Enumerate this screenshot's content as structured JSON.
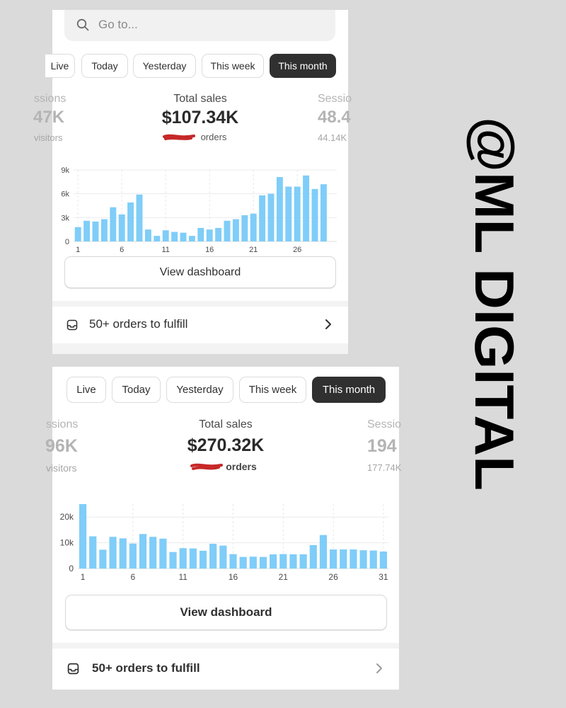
{
  "top_panel": {
    "search_placeholder": "Go to...",
    "tabs": [
      {
        "label": "Live",
        "active": false
      },
      {
        "label": "Today",
        "active": false
      },
      {
        "label": "Yesterday",
        "active": false
      },
      {
        "label": "This week",
        "active": false
      },
      {
        "label": "This month",
        "active": true
      }
    ],
    "left_stat": {
      "title": "ssions",
      "value": "47K",
      "sub": "visitors"
    },
    "main_stat": {
      "title": "Total sales",
      "value": "$107.34K",
      "sub": "orders"
    },
    "right_stat": {
      "title": "Sessio",
      "value": "48.4",
      "sub": "44.14K"
    },
    "button_label": "View dashboard",
    "fulfill_label": "50+ orders to fulfill"
  },
  "bottom_panel": {
    "tabs": [
      {
        "label": "Live",
        "active": false
      },
      {
        "label": "Today",
        "active": false
      },
      {
        "label": "Yesterday",
        "active": false
      },
      {
        "label": "This week",
        "active": false
      },
      {
        "label": "This month",
        "active": true
      }
    ],
    "left_stat": {
      "title": "ssions",
      "value": "96K",
      "sub": "visitors"
    },
    "main_stat": {
      "title": "Total sales",
      "value": "$270.32K",
      "sub": "orders"
    },
    "right_stat": {
      "title": "Sessio",
      "value": "194",
      "sub": "177.74K"
    },
    "button_label": "View dashboard",
    "fulfill_label": "50+ orders to fulfill"
  },
  "watermark": "@ML DIGITAL",
  "colors": {
    "bar": "#7fcdf8",
    "active_tab": "#303030",
    "redaction": "#c62828"
  },
  "chart_data": [
    {
      "type": "bar",
      "x": [
        1,
        2,
        3,
        4,
        5,
        6,
        7,
        8,
        9,
        10,
        11,
        12,
        13,
        14,
        15,
        16,
        17,
        18,
        19,
        20,
        21,
        22,
        23,
        24,
        25,
        26,
        27,
        28,
        29,
        30
      ],
      "values": [
        1.8,
        2.6,
        2.5,
        2.8,
        4.3,
        3.4,
        4.9,
        5.9,
        1.5,
        0.7,
        1.4,
        1.2,
        1.1,
        0.7,
        1.7,
        1.5,
        1.7,
        2.6,
        2.8,
        3.3,
        3.5,
        5.8,
        6.0,
        8.1,
        6.9,
        6.9,
        8.3,
        6.6,
        7.2,
        0
      ],
      "y_tick_labels": [
        "0",
        "3k",
        "6k",
        "9k"
      ],
      "y_ticks": [
        0,
        3,
        6,
        9
      ],
      "x_tick_labels": [
        "1",
        "6",
        "11",
        "16",
        "21",
        "26"
      ],
      "x_ticks": [
        1,
        6,
        11,
        16,
        21,
        26
      ],
      "ylim": [
        0,
        9
      ],
      "grid": true
    },
    {
      "type": "bar",
      "x": [
        1,
        2,
        3,
        4,
        5,
        6,
        7,
        8,
        9,
        10,
        11,
        12,
        13,
        14,
        15,
        16,
        17,
        18,
        19,
        20,
        21,
        22,
        23,
        24,
        25,
        26,
        27,
        28,
        29,
        30,
        31
      ],
      "values": [
        25,
        12.5,
        7.3,
        12.3,
        11.7,
        9.7,
        13.4,
        12.3,
        11.6,
        6.4,
        7.9,
        7.8,
        6.9,
        9.6,
        8.9,
        5.6,
        4.5,
        4.6,
        4.5,
        5.5,
        5.6,
        5.5,
        5.5,
        9.1,
        13,
        7.4,
        7.4,
        7.4,
        7.1,
        7.0,
        6.6
      ],
      "y_tick_labels": [
        "0",
        "10k",
        "20k"
      ],
      "y_ticks": [
        0,
        10,
        20
      ],
      "x_tick_labels": [
        "1",
        "6",
        "11",
        "16",
        "21",
        "26",
        "31"
      ],
      "x_ticks": [
        1,
        6,
        11,
        16,
        21,
        26,
        31
      ],
      "ylim": [
        0,
        25
      ],
      "grid": true
    }
  ]
}
